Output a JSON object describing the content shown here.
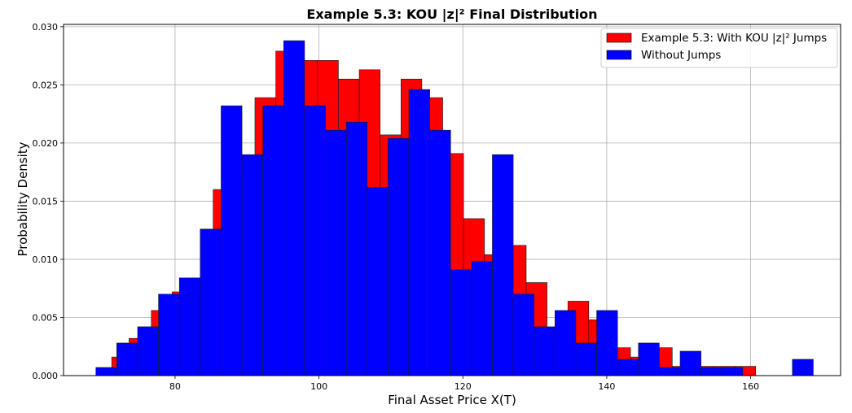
{
  "chart_data": {
    "type": "bar",
    "title": "Example 5.3: KOU |z|² Final Distribution",
    "xlabel": "Final Asset Price X(T)",
    "ylabel": "Probability Density",
    "xlim": [
      64.5,
      172.5
    ],
    "ylim": [
      0,
      0.0302
    ],
    "xticks": [
      80,
      100,
      120,
      140,
      160
    ],
    "yticks": [
      "0.000",
      "0.005",
      "0.010",
      "0.015",
      "0.020",
      "0.025",
      "0.030"
    ],
    "grid": true,
    "legend_position": "top-right",
    "series": [
      {
        "name": "Example 5.3: With KOU |z|² Jumps",
        "color": "#ff0000",
        "bin_width": 2.9,
        "bins": [
          [
            71.2,
            0.0016
          ],
          [
            73.6,
            0.0032
          ],
          [
            76.7,
            0.0056
          ],
          [
            79.6,
            0.0072
          ],
          [
            82.4,
            0.0072
          ],
          [
            85.3,
            0.016
          ],
          [
            88.2,
            0.0176
          ],
          [
            91.1,
            0.0239
          ],
          [
            94.0,
            0.0279
          ],
          [
            96.9,
            0.0271
          ],
          [
            99.8,
            0.0271
          ],
          [
            102.7,
            0.0255
          ],
          [
            105.6,
            0.0263
          ],
          [
            108.5,
            0.0207
          ],
          [
            111.4,
            0.0255
          ],
          [
            114.3,
            0.0239
          ],
          [
            117.2,
            0.0191
          ],
          [
            120.1,
            0.0135
          ],
          [
            123.0,
            0.0104
          ],
          [
            125.9,
            0.0112
          ],
          [
            128.8,
            0.008
          ],
          [
            131.7,
            0.004
          ],
          [
            134.6,
            0.0064
          ],
          [
            137.5,
            0.0048
          ],
          [
            140.4,
            0.0024
          ],
          [
            143.3,
            0.0016
          ],
          [
            146.2,
            0.0024
          ],
          [
            149.1,
            0.0008
          ],
          [
            152.0,
            0.0008
          ],
          [
            154.9,
            0.0008
          ],
          [
            157.8,
            0.0008
          ]
        ]
      },
      {
        "name": "Without Jumps",
        "color": "#0000ff",
        "bin_width": 2.9,
        "bins": [
          [
            69.0,
            0.0007
          ],
          [
            71.9,
            0.0028
          ],
          [
            74.8,
            0.0042
          ],
          [
            77.7,
            0.007
          ],
          [
            80.6,
            0.0084
          ],
          [
            83.5,
            0.0126
          ],
          [
            86.4,
            0.0232
          ],
          [
            89.3,
            0.019
          ],
          [
            92.2,
            0.0232
          ],
          [
            95.1,
            0.0288
          ],
          [
            98.0,
            0.0232
          ],
          [
            100.9,
            0.0211
          ],
          [
            103.8,
            0.0218
          ],
          [
            106.7,
            0.0162
          ],
          [
            109.6,
            0.0204
          ],
          [
            112.5,
            0.0246
          ],
          [
            115.4,
            0.0211
          ],
          [
            118.3,
            0.0091
          ],
          [
            121.2,
            0.0098
          ],
          [
            124.1,
            0.019
          ],
          [
            127.0,
            0.007
          ],
          [
            129.9,
            0.0042
          ],
          [
            132.8,
            0.0056
          ],
          [
            135.7,
            0.0028
          ],
          [
            138.6,
            0.0056
          ],
          [
            141.5,
            0.0014
          ],
          [
            144.4,
            0.0028
          ],
          [
            147.3,
            0.0007
          ],
          [
            150.2,
            0.0021
          ],
          [
            153.1,
            0.0007
          ],
          [
            156.0,
            0.0007
          ],
          [
            165.8,
            0.0014
          ]
        ]
      }
    ]
  }
}
